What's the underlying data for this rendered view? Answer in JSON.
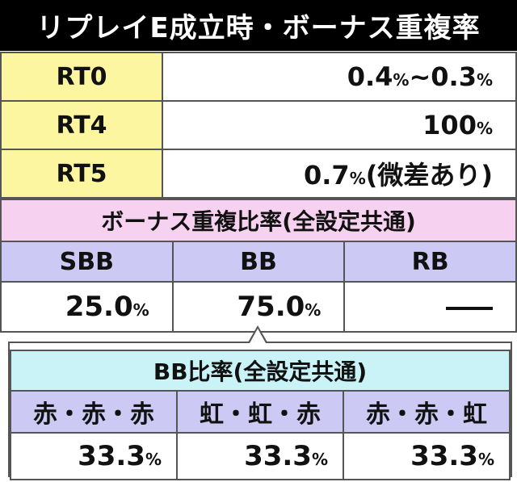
{
  "header": {
    "title": "リプレイE成立時・ボーナス重複率"
  },
  "rt_table": {
    "rows": [
      {
        "label": "RT0",
        "value": "0.4",
        "value_pct": "%",
        "value2": "~0.3",
        "value2_pct": "%"
      },
      {
        "label": "RT4",
        "value": "100",
        "value_pct": "%"
      },
      {
        "label": "RT5",
        "value": "0.7",
        "value_pct": "%",
        "note": "(微差あり)"
      }
    ]
  },
  "bonus_ratio": {
    "title": "ボーナス重複比率(全設定共通)",
    "columns": [
      "SBB",
      "BB",
      "RB"
    ],
    "values": [
      {
        "num": "25.0",
        "pct": "%"
      },
      {
        "num": "75.0",
        "pct": "%"
      },
      {
        "num": "",
        "pct": ""
      }
    ]
  },
  "bb_ratio": {
    "title": "BB比率(全設定共通)",
    "columns": [
      "赤・赤・赤",
      "虹・虹・赤",
      "赤・赤・虹"
    ],
    "values": [
      {
        "num": "33.3",
        "pct": "%"
      },
      {
        "num": "33.3",
        "pct": "%"
      },
      {
        "num": "33.3",
        "pct": "%"
      }
    ]
  },
  "colors": {
    "header_bg": "#000000",
    "label_bg": "#fdf6a0",
    "bonus_title_bg": "#f7d2f0",
    "column_header_bg": "#cccaf4",
    "bb_title_bg": "#c9f3f6"
  }
}
